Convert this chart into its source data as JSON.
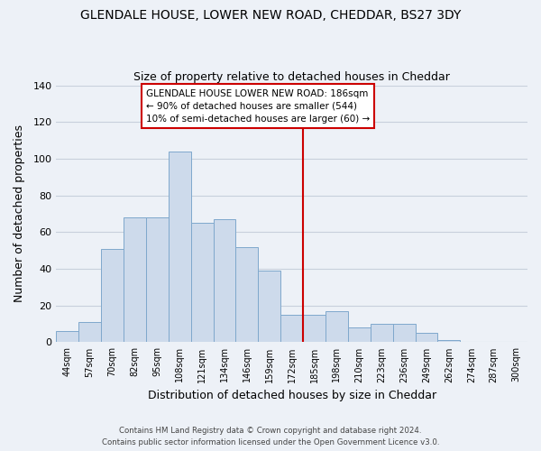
{
  "title1": "GLENDALE HOUSE, LOWER NEW ROAD, CHEDDAR, BS27 3DY",
  "title2": "Size of property relative to detached houses in Cheddar",
  "xlabel": "Distribution of detached houses by size in Cheddar",
  "ylabel": "Number of detached properties",
  "bar_labels": [
    "44sqm",
    "57sqm",
    "70sqm",
    "82sqm",
    "95sqm",
    "108sqm",
    "121sqm",
    "134sqm",
    "146sqm",
    "159sqm",
    "172sqm",
    "185sqm",
    "198sqm",
    "210sqm",
    "223sqm",
    "236sqm",
    "249sqm",
    "262sqm",
    "274sqm",
    "287sqm",
    "300sqm"
  ],
  "bar_heights": [
    6,
    11,
    51,
    68,
    68,
    104,
    65,
    67,
    52,
    39,
    15,
    15,
    17,
    8,
    10,
    10,
    5,
    1,
    0,
    0,
    0
  ],
  "bar_color": "#cddaeb",
  "bar_edge_color": "#7fa8cc",
  "vline_color": "#cc0000",
  "annotation_text": "GLENDALE HOUSE LOWER NEW ROAD: 186sqm\n← 90% of detached houses are smaller (544)\n10% of semi-detached houses are larger (60) →",
  "annotation_box_color": "#ffffff",
  "annotation_box_edge": "#cc0000",
  "ylim": [
    0,
    140
  ],
  "yticks": [
    0,
    20,
    40,
    60,
    80,
    100,
    120,
    140
  ],
  "footer1": "Contains HM Land Registry data © Crown copyright and database right 2024.",
  "footer2": "Contains public sector information licensed under the Open Government Licence v3.0.",
  "bg_color": "#edf1f7",
  "plot_bg_color": "#edf1f7",
  "grid_color": "#c8d0dc"
}
